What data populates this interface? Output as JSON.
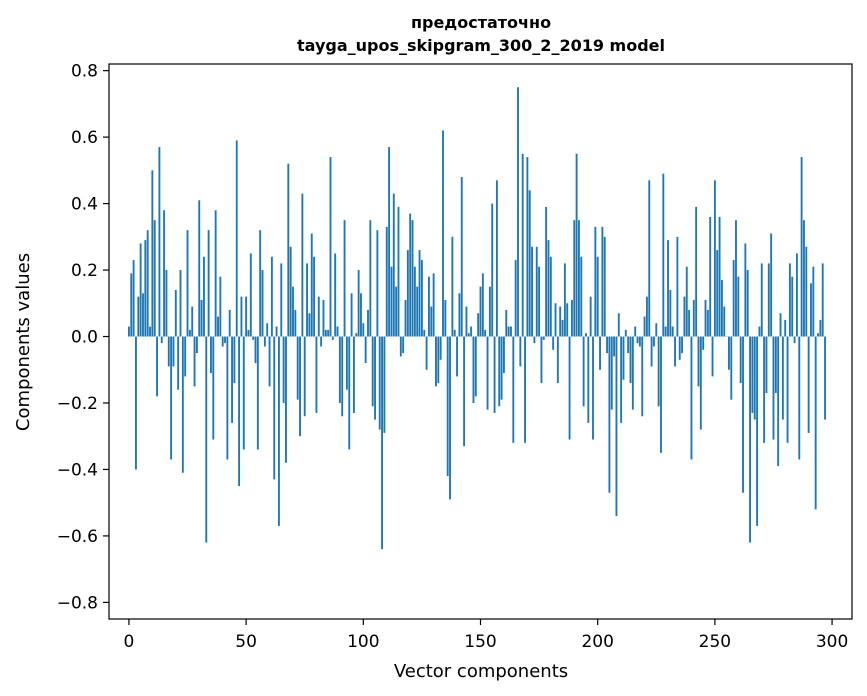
{
  "chart_data": {
    "type": "bar",
    "title_line1": "предостаточно",
    "title_line2": "tayga_upos_skipgram_300_2_2019 model",
    "xlabel": "Vector components",
    "ylabel": "Components values",
    "xlim": [
      -8.5,
      308.5
    ],
    "ylim": [
      -0.85,
      0.82
    ],
    "xticks": [
      0,
      50,
      100,
      150,
      200,
      250,
      300
    ],
    "xtick_labels": [
      "0",
      "50",
      "100",
      "150",
      "200",
      "250",
      "300"
    ],
    "yticks": [
      0.8,
      0.6,
      0.4,
      0.2,
      0.0,
      -0.2,
      -0.4,
      -0.6,
      -0.8
    ],
    "ytick_labels": [
      "0.8",
      "0.6",
      "0.4",
      "0.2",
      "0.0",
      "−0.2",
      "−0.4",
      "−0.6",
      "−0.8"
    ],
    "bar_color": "#1f77b4",
    "grid": false,
    "values": [
      0.03,
      0.19,
      0.23,
      -0.4,
      0.12,
      0.28,
      0.13,
      0.29,
      0.32,
      0.03,
      0.5,
      0.35,
      -0.18,
      0.57,
      -0.02,
      0.38,
      0.2,
      -0.09,
      -0.37,
      -0.09,
      0.14,
      -0.16,
      0.2,
      -0.41,
      -0.12,
      0.32,
      0.02,
      0.09,
      -0.15,
      -0.05,
      0.41,
      0.11,
      0.24,
      -0.62,
      0.32,
      -0.11,
      -0.31,
      0.38,
      0.06,
      0.18,
      -0.03,
      -0.02,
      -0.37,
      0.08,
      -0.26,
      -0.14,
      0.59,
      -0.45,
      0.12,
      -0.34,
      0.12,
      0.02,
      0.25,
      -0.01,
      -0.08,
      -0.34,
      0.32,
      0.2,
      -0.03,
      0.04,
      -0.15,
      0.24,
      -0.43,
      0.03,
      -0.57,
      0.22,
      -0.2,
      -0.38,
      0.52,
      0.27,
      0.15,
      0.08,
      -0.19,
      -0.3,
      0.43,
      -0.24,
      0.22,
      0.07,
      0.31,
      0.24,
      -0.23,
      0.12,
      -0.03,
      0.11,
      0.02,
      0.02,
      0.54,
      -0.01,
      0.25,
      0.03,
      -0.2,
      -0.24,
      0.35,
      -0.16,
      -0.34,
      0.13,
      -0.23,
      0.01,
      0.2,
      0.13,
      0.04,
      -0.08,
      0.08,
      0.35,
      -0.21,
      -0.25,
      0.32,
      -0.28,
      -0.64,
      -0.29,
      0.33,
      0.57,
      0.21,
      0.43,
      0.15,
      0.39,
      -0.06,
      -0.05,
      0.11,
      0.26,
      0.37,
      0.35,
      0.21,
      0.15,
      0.26,
      0.23,
      0.02,
      -0.1,
      0.18,
      0.09,
      0.19,
      -0.15,
      -0.14,
      -0.07,
      0.62,
      0.11,
      -0.42,
      -0.49,
      0.3,
      0.02,
      -0.12,
      0.13,
      0.48,
      -0.33,
      0.09,
      0.01,
      0.03,
      -0.2,
      -0.18,
      0.07,
      0.15,
      0.19,
      0.02,
      -0.22,
      0.15,
      0.4,
      -0.23,
      0.47,
      -0.21,
      -0.19,
      -0.11,
      0.08,
      0.03,
      0.03,
      -0.32,
      0.23,
      0.75,
      -0.09,
      0.55,
      -0.32,
      0.54,
      0.44,
      0.27,
      -0.02,
      0.27,
      0.21,
      -0.14,
      -0.01,
      0.39,
      0.29,
      0.24,
      -0.04,
      0.1,
      -0.14,
      0.09,
      0.05,
      0.22,
      0.1,
      -0.31,
      0.11,
      0.35,
      0.55,
      0.35,
      0.24,
      -0.21,
      0.01,
      -0.26,
      0.12,
      -0.31,
      0.33,
      0.24,
      -0.1,
      0.33,
      0.3,
      -0.05,
      -0.47,
      -0.22,
      -0.06,
      -0.54,
      0.07,
      -0.26,
      -0.13,
      0.02,
      -0.05,
      -0.14,
      -0.22,
      0.03,
      -0.02,
      -0.03,
      -0.24,
      0.06,
      0.12,
      0.47,
      -0.09,
      -0.03,
      0.04,
      -0.21,
      -0.35,
      0.49,
      0.03,
      0.29,
      0.14,
      0.03,
      -0.09,
      0.3,
      -0.07,
      -0.05,
      0.12,
      0.21,
      0.08,
      -0.37,
      0.11,
      0.39,
      -0.15,
      -0.28,
      -0.04,
      0.11,
      0.08,
      0.36,
      -0.12,
      0.47,
      0.26,
      0.36,
      0.17,
      0.09,
      0.0,
      -0.1,
      -0.19,
      0.23,
      0.35,
      0.18,
      -0.14,
      -0.47,
      0.28,
      0.2,
      -0.62,
      -0.23,
      -0.25,
      -0.57,
      0.03,
      0.22,
      -0.32,
      -0.17,
      0.22,
      0.31,
      -0.31,
      -0.17,
      -0.39,
      0.07,
      -0.25,
      0.05,
      -0.32,
      0.22,
      0.18,
      -0.02,
      0.25,
      -0.37,
      0.54,
      0.35,
      0.27,
      -0.29,
      0.16,
      0.21,
      -0.52,
      0.01,
      0.05,
      0.22,
      -0.25
    ]
  }
}
